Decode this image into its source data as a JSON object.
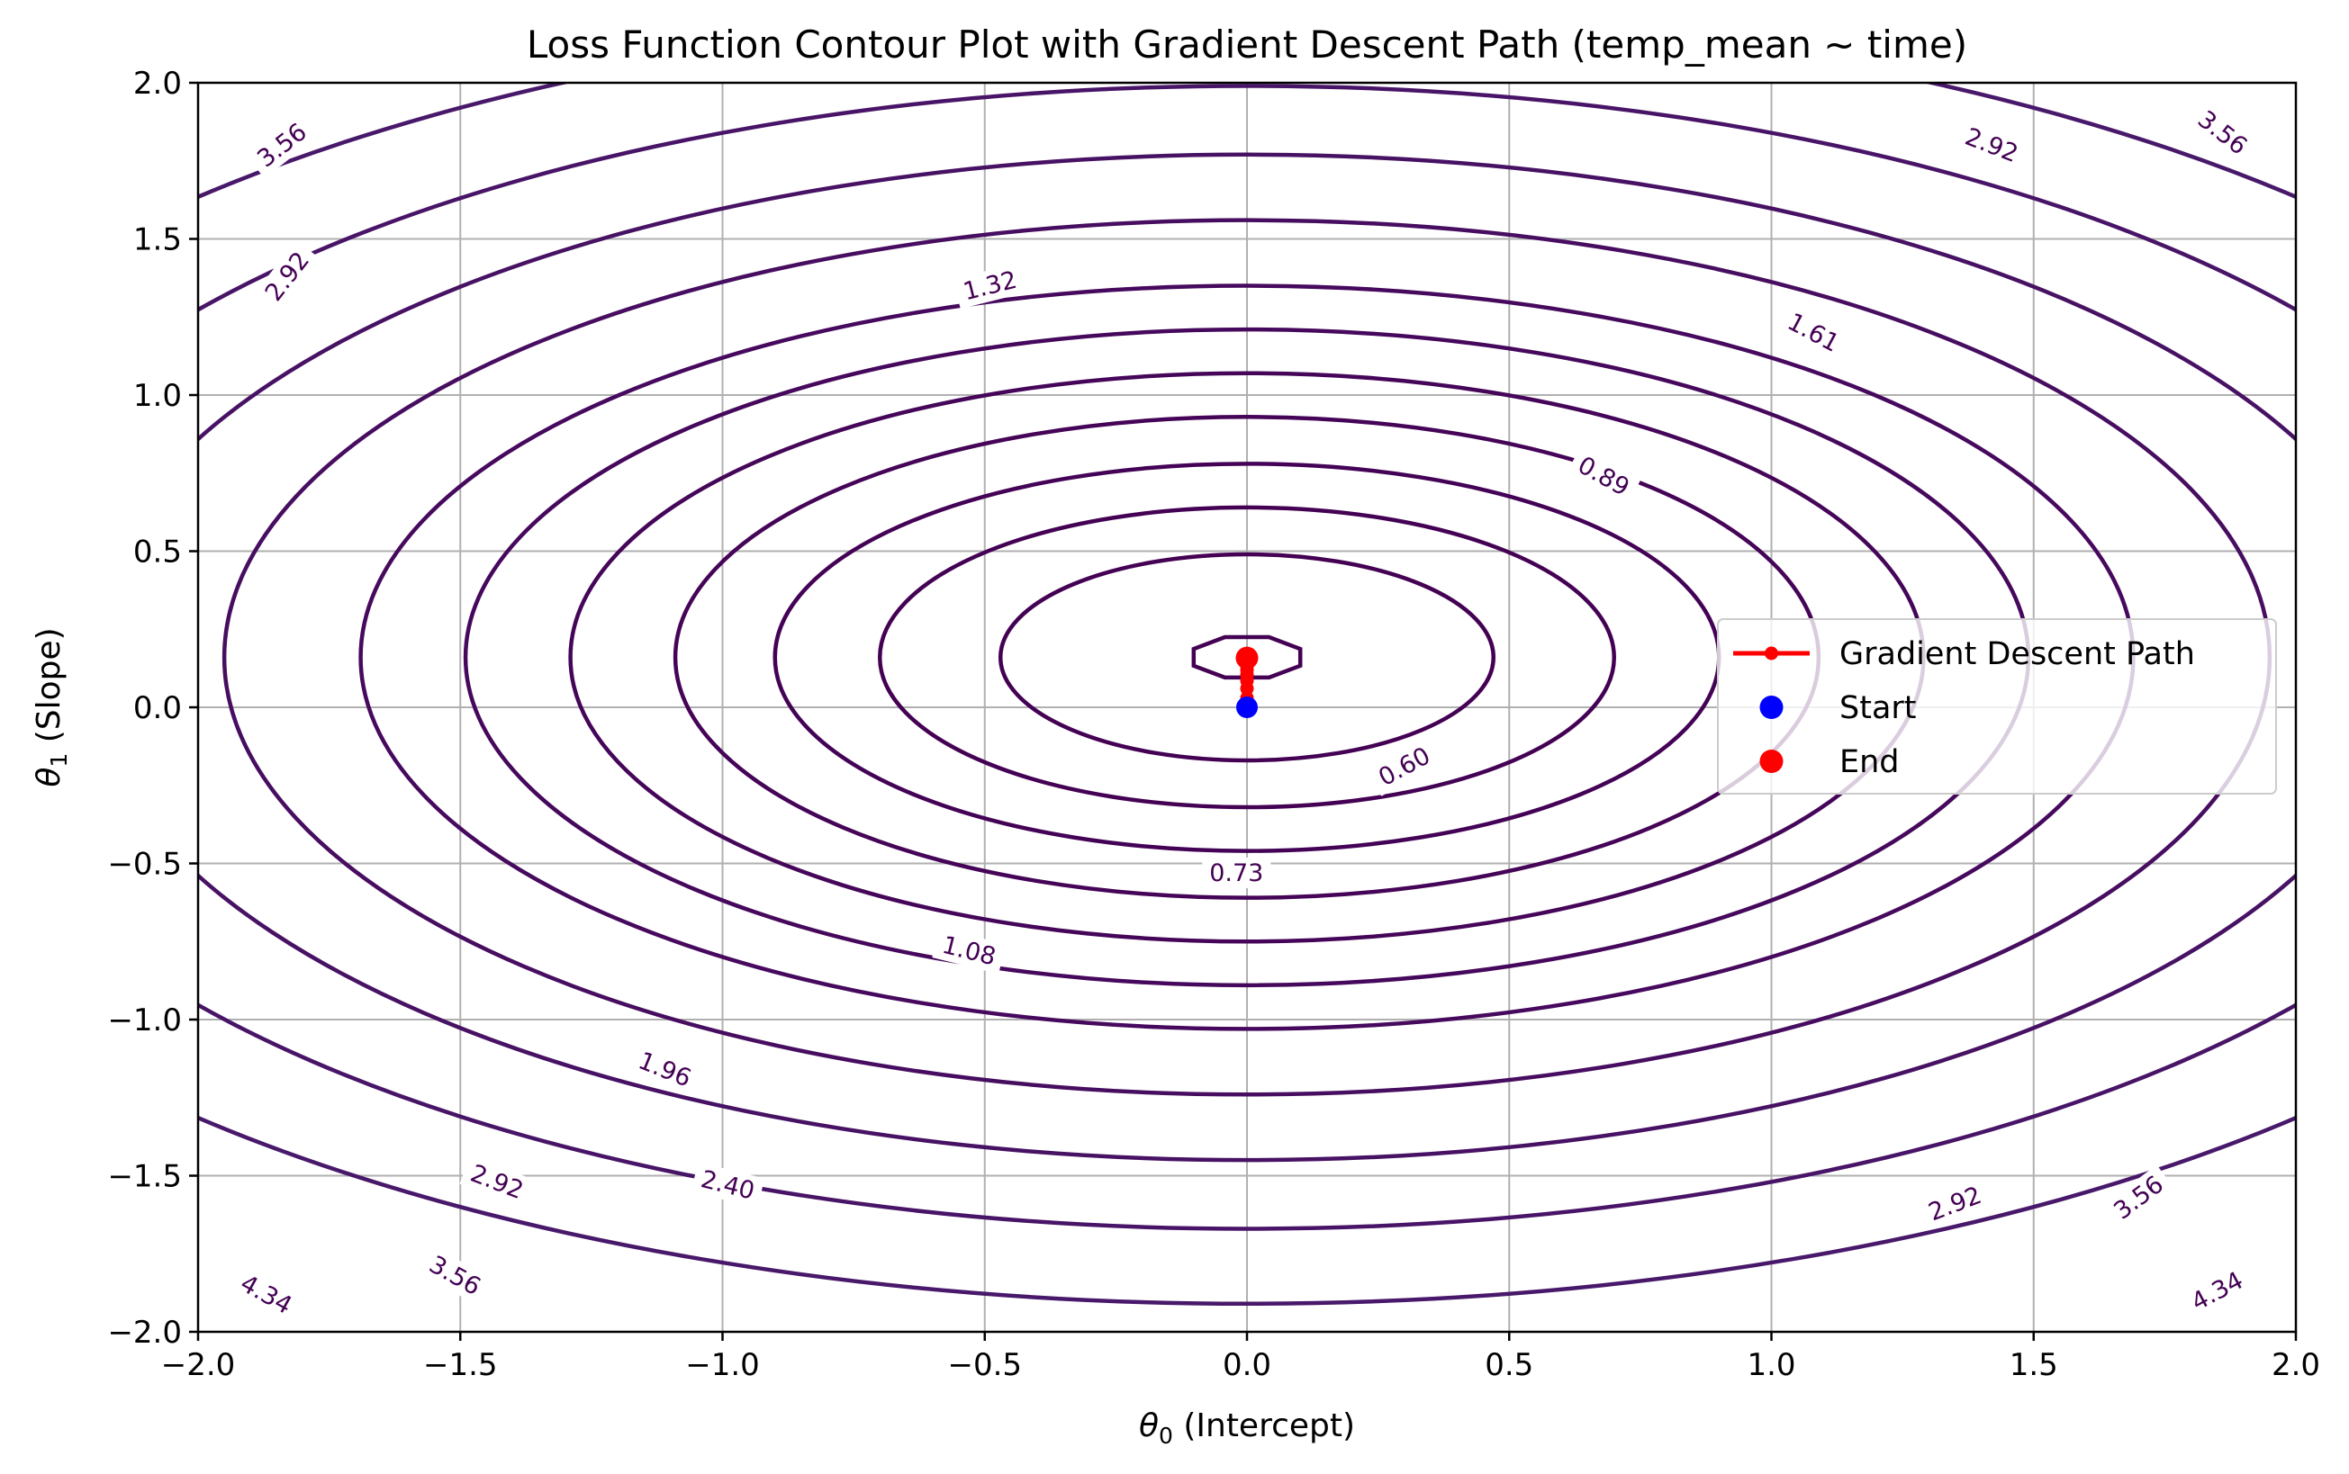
{
  "chart_data": {
    "type": "contour",
    "title": "Loss Function Contour Plot with Gradient Descent Path (temp_mean ~ time)",
    "xlabel": "θ0 (Intercept)",
    "xlabel_symbol": "θ",
    "xlabel_sub": "0",
    "xlabel_rest": " (Intercept)",
    "ylabel": "θ1 (Slope)",
    "ylabel_symbol": "θ",
    "ylabel_sub": "1",
    "ylabel_rest": " (Slope)",
    "xlim": [
      -2.0,
      2.0
    ],
    "ylim": [
      -2.0,
      2.0
    ],
    "grid": true,
    "x_ticks": [
      -2.0,
      -1.5,
      -1.0,
      -0.5,
      0.0,
      0.5,
      1.0,
      1.5,
      2.0
    ],
    "x_tick_labels": [
      "−2.0",
      "−1.5",
      "−1.0",
      "−0.5",
      "0.0",
      "0.5",
      "1.0",
      "1.5",
      "2.0"
    ],
    "y_ticks": [
      -2.0,
      -1.5,
      -1.0,
      -0.5,
      0.0,
      0.5,
      1.0,
      1.5,
      2.0
    ],
    "y_tick_labels": [
      "−2.0",
      "−1.5",
      "−1.0",
      "−0.5",
      "0.0",
      "0.5",
      "1.0",
      "1.5",
      "2.0"
    ],
    "loss_center": {
      "theta0": 0.0,
      "theta1": 0.16
    },
    "contour_levels": [
      {
        "rx": 0.11,
        "ry": 0.07,
        "shape": "octagon"
      },
      {
        "rx": 0.47,
        "ry": 0.33
      },
      {
        "rx": 0.7,
        "ry": 0.48
      },
      {
        "rx": 0.9,
        "ry": 0.62
      },
      {
        "rx": 1.09,
        "ry": 0.77
      },
      {
        "rx": 1.29,
        "ry": 0.91
      },
      {
        "rx": 1.49,
        "ry": 1.05
      },
      {
        "rx": 1.69,
        "ry": 1.19
      },
      {
        "rx": 1.95,
        "ry": 1.4
      },
      {
        "rx": 2.22,
        "ry": 1.61
      },
      {
        "rx": 2.52,
        "ry": 1.83
      },
      {
        "rx": 2.85,
        "ry": 2.07
      }
    ],
    "contour_colors": [
      "#440154",
      "#440154",
      "#440154",
      "#440256",
      "#450457",
      "#450659",
      "#46085c",
      "#46095e",
      "#470d60",
      "#471164",
      "#481467",
      "#48186a"
    ],
    "contour_labels": [
      {
        "text": "0.60",
        "x": 0.3,
        "y": -0.19,
        "angle": -28
      },
      {
        "text": "0.73",
        "x": -0.02,
        "y": -0.53,
        "angle": 0
      },
      {
        "text": "0.89",
        "x": 0.68,
        "y": 0.74,
        "angle": 29
      },
      {
        "text": "1.08",
        "x": -0.53,
        "y": -0.78,
        "angle": 14
      },
      {
        "text": "1.32",
        "x": -0.49,
        "y": 1.35,
        "angle": -14
      },
      {
        "text": "1.61",
        "x": 1.08,
        "y": 1.2,
        "angle": 28
      },
      {
        "text": "1.96",
        "x": -1.11,
        "y": -1.16,
        "angle": 22
      },
      {
        "text": "2.40",
        "x": -0.99,
        "y": -1.53,
        "angle": 14
      },
      {
        "text": "2.92",
        "x": 1.42,
        "y": 1.8,
        "angle": 21
      },
      {
        "text": "2.92",
        "x": -1.83,
        "y": 1.38,
        "angle": -52
      },
      {
        "text": "2.92",
        "x": -1.43,
        "y": -1.52,
        "angle": 21
      },
      {
        "text": "2.92",
        "x": 1.35,
        "y": -1.59,
        "angle": -21
      },
      {
        "text": "3.56",
        "x": -1.84,
        "y": 1.8,
        "angle": -38
      },
      {
        "text": "3.56",
        "x": 1.86,
        "y": 1.84,
        "angle": 38
      },
      {
        "text": "3.56",
        "x": -1.51,
        "y": -1.82,
        "angle": 29
      },
      {
        "text": "3.56",
        "x": 1.7,
        "y": -1.57,
        "angle": -37
      },
      {
        "text": "4.34",
        "x": -1.87,
        "y": -1.88,
        "angle": 29
      },
      {
        "text": "4.34",
        "x": 1.85,
        "y": -1.87,
        "angle": -28
      }
    ],
    "series": [
      {
        "name": "Gradient Descent Path",
        "color": "#ff0000",
        "x": [
          0.0,
          0.0,
          0.0,
          0.0,
          0.0,
          0.0,
          0.0,
          0.0,
          0.0,
          0.0,
          0.0,
          0.0
        ],
        "y": [
          0.0,
          0.03,
          0.06,
          0.085,
          0.105,
          0.12,
          0.132,
          0.141,
          0.148,
          0.153,
          0.156,
          0.158
        ]
      },
      {
        "name": "Start",
        "color": "#0000ff",
        "x": [
          0.0
        ],
        "y": [
          0.0
        ]
      },
      {
        "name": "End",
        "color": "#ff0000",
        "x": [
          0.0
        ],
        "y": [
          0.158
        ]
      }
    ],
    "legend": {
      "location": "center-right",
      "entries": [
        "Gradient Descent Path",
        "Start",
        "End"
      ]
    }
  }
}
